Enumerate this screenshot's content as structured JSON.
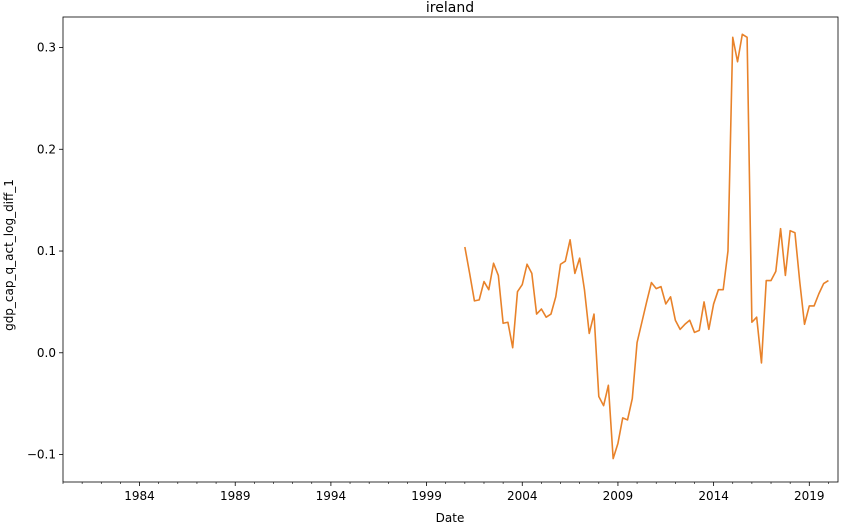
{
  "chart_data": {
    "type": "line",
    "title": "ireland",
    "xlabel": "Date",
    "ylabel": "gdp_cap_q_act_log_diff_1",
    "xlim": [
      1980.0,
      2020.5
    ],
    "ylim": [
      -0.127,
      0.33
    ],
    "xticks": [
      1984,
      1989,
      1994,
      1999,
      2004,
      2009,
      2014,
      2019
    ],
    "yticks": [
      -0.1,
      0.0,
      0.1,
      0.2,
      0.3
    ],
    "ytick_labels": [
      "−0.1",
      "0.0",
      "0.1",
      "0.2",
      "0.3"
    ],
    "grid": false,
    "legend": "none",
    "series": [
      {
        "color": "#e8822a",
        "x": [
          2001.0,
          2001.25,
          2001.5,
          2001.75,
          2002.0,
          2002.25,
          2002.5,
          2002.75,
          2003.0,
          2003.25,
          2003.5,
          2003.75,
          2004.0,
          2004.25,
          2004.5,
          2004.75,
          2005.0,
          2005.25,
          2005.5,
          2005.75,
          2006.0,
          2006.25,
          2006.5,
          2006.75,
          2007.0,
          2007.25,
          2007.5,
          2007.75,
          2008.0,
          2008.25,
          2008.5,
          2008.75,
          2009.0,
          2009.25,
          2009.5,
          2009.75,
          2010.0,
          2010.25,
          2010.5,
          2010.75,
          2011.0,
          2011.25,
          2011.5,
          2011.75,
          2012.0,
          2012.25,
          2012.5,
          2012.75,
          2013.0,
          2013.25,
          2013.5,
          2013.75,
          2014.0,
          2014.25,
          2014.5,
          2014.75,
          2015.0,
          2015.25,
          2015.5,
          2015.75,
          2016.0,
          2016.25,
          2016.5,
          2016.75,
          2017.0,
          2017.25,
          2017.5,
          2017.75,
          2018.0,
          2018.25,
          2018.5,
          2018.75,
          2019.0,
          2019.25,
          2019.5,
          2019.75,
          2020.0
        ],
        "y": [
          0.104,
          0.078,
          0.051,
          0.052,
          0.07,
          0.062,
          0.088,
          0.076,
          0.029,
          0.03,
          0.005,
          0.06,
          0.067,
          0.087,
          0.078,
          0.038,
          0.043,
          0.035,
          0.038,
          0.055,
          0.087,
          0.09,
          0.111,
          0.078,
          0.093,
          0.062,
          0.019,
          0.038,
          -0.043,
          -0.052,
          -0.032,
          -0.104,
          -0.089,
          -0.064,
          -0.066,
          -0.045,
          0.01,
          0.03,
          0.05,
          0.069,
          0.063,
          0.065,
          0.048,
          0.055,
          0.032,
          0.023,
          0.028,
          0.032,
          0.02,
          0.022,
          0.05,
          0.023,
          0.048,
          0.062,
          0.062,
          0.1,
          0.31,
          0.286,
          0.313,
          0.31,
          0.03,
          0.035,
          -0.01,
          0.071,
          0.071,
          0.08,
          0.122,
          0.076,
          0.12,
          0.118,
          0.07,
          0.028,
          0.046,
          0.046,
          0.058,
          0.068,
          0.071
        ]
      }
    ]
  }
}
